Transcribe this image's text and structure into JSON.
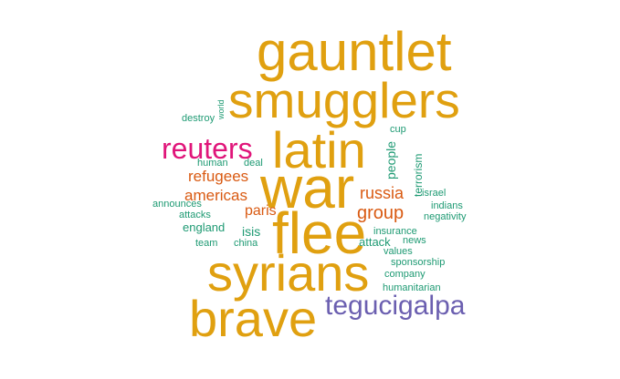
{
  "colors": {
    "gold": "#e0a010",
    "magenta": "#e0157a",
    "orange": "#d95a12",
    "green": "#1e9a73",
    "purple": "#6b5fb0"
  },
  "words": [
    {
      "text": "gauntlet",
      "color": "gold"
    },
    {
      "text": "smugglers",
      "color": "gold"
    },
    {
      "text": "latin",
      "color": "gold"
    },
    {
      "text": "war",
      "color": "gold"
    },
    {
      "text": "flee",
      "color": "gold"
    },
    {
      "text": "syrians",
      "color": "gold"
    },
    {
      "text": "brave",
      "color": "gold"
    },
    {
      "text": "reuters",
      "color": "magenta"
    },
    {
      "text": "tegucigalpa",
      "color": "purple"
    },
    {
      "text": "refugees",
      "color": "orange"
    },
    {
      "text": "americas",
      "color": "orange"
    },
    {
      "text": "russia",
      "color": "orange"
    },
    {
      "text": "group",
      "color": "orange"
    },
    {
      "text": "paris",
      "color": "orange"
    },
    {
      "text": "people",
      "color": "green"
    },
    {
      "text": "terrorism",
      "color": "green"
    },
    {
      "text": "world",
      "color": "green"
    },
    {
      "text": "destroy",
      "color": "green"
    },
    {
      "text": "cup",
      "color": "green"
    },
    {
      "text": "human",
      "color": "green"
    },
    {
      "text": "deal",
      "color": "green"
    },
    {
      "text": "israel",
      "color": "green"
    },
    {
      "text": "indians",
      "color": "green"
    },
    {
      "text": "negativity",
      "color": "green"
    },
    {
      "text": "announces",
      "color": "green"
    },
    {
      "text": "attacks",
      "color": "green"
    },
    {
      "text": "england",
      "color": "green"
    },
    {
      "text": "isis",
      "color": "green"
    },
    {
      "text": "insurance",
      "color": "green"
    },
    {
      "text": "attack",
      "color": "green"
    },
    {
      "text": "news",
      "color": "green"
    },
    {
      "text": "team",
      "color": "green"
    },
    {
      "text": "china",
      "color": "green"
    },
    {
      "text": "values",
      "color": "green"
    },
    {
      "text": "sponsorship",
      "color": "green"
    },
    {
      "text": "company",
      "color": "green"
    },
    {
      "text": "humanitarian",
      "color": "green"
    }
  ]
}
